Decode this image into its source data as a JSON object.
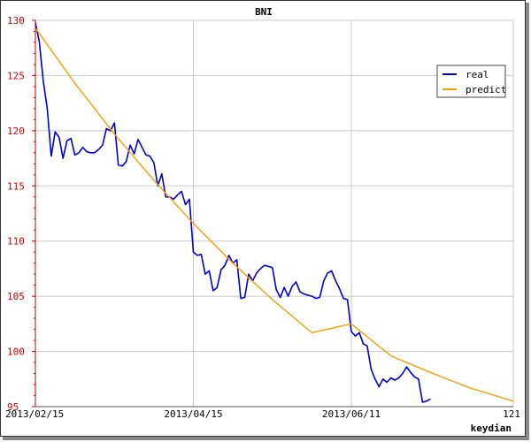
{
  "chart_data": {
    "type": "line",
    "title": "BNI",
    "watermark": "keydian",
    "xlabel": "",
    "ylabel": "",
    "x_range": [
      0,
      121
    ],
    "ylim": [
      95,
      130
    ],
    "y_ticks": [
      95,
      100,
      105,
      110,
      115,
      120,
      125,
      130
    ],
    "x_ticks": [
      {
        "x": 0,
        "label": "2013/02/15"
      },
      {
        "x": 40,
        "label": "2013/04/15"
      },
      {
        "x": 80,
        "label": "2013/06/11"
      },
      {
        "x": 121,
        "label": "121"
      }
    ],
    "grid": true,
    "legend_position": "top-right",
    "series": [
      {
        "name": "real",
        "color": "#0000cc",
        "points": [
          [
            0,
            129.8
          ],
          [
            1,
            128
          ],
          [
            2,
            124.5
          ],
          [
            3,
            122
          ],
          [
            4,
            117.7
          ],
          [
            5,
            119.9
          ],
          [
            6,
            119.4
          ],
          [
            7,
            117.5
          ],
          [
            8,
            119.1
          ],
          [
            9,
            119.3
          ],
          [
            10,
            117.8
          ],
          [
            11,
            118.0
          ],
          [
            12,
            118.5
          ],
          [
            13,
            118.1
          ],
          [
            14,
            118.0
          ],
          [
            15,
            118.0
          ],
          [
            16,
            118.3
          ],
          [
            17,
            118.7
          ],
          [
            18,
            120.2
          ],
          [
            19,
            120.0
          ],
          [
            20,
            120.7
          ],
          [
            21,
            116.9
          ],
          [
            22,
            116.8
          ],
          [
            23,
            117.2
          ],
          [
            24,
            118.7
          ],
          [
            25,
            117.9
          ],
          [
            26,
            119.2
          ],
          [
            27,
            118.5
          ],
          [
            28,
            117.8
          ],
          [
            29,
            117.7
          ],
          [
            30,
            117.1
          ],
          [
            31,
            115.0
          ],
          [
            32,
            116.1
          ],
          [
            33,
            114.0
          ],
          [
            34,
            114.0
          ],
          [
            35,
            113.8
          ],
          [
            36,
            114.2
          ],
          [
            37,
            114.5
          ],
          [
            38,
            113.3
          ],
          [
            39,
            113.8
          ],
          [
            40,
            109.0
          ],
          [
            41,
            108.7
          ],
          [
            42,
            108.8
          ],
          [
            43,
            107.0
          ],
          [
            44,
            107.3
          ],
          [
            45,
            105.5
          ],
          [
            46,
            105.8
          ],
          [
            47,
            107.4
          ],
          [
            48,
            107.8
          ],
          [
            49,
            108.7
          ],
          [
            50,
            108.0
          ],
          [
            51,
            108.3
          ],
          [
            52,
            104.8
          ],
          [
            53,
            104.9
          ],
          [
            54,
            107.0
          ],
          [
            55,
            106.4
          ],
          [
            56,
            107.1
          ],
          [
            57,
            107.5
          ],
          [
            58,
            107.8
          ],
          [
            59,
            107.7
          ],
          [
            60,
            107.6
          ],
          [
            61,
            105.6
          ],
          [
            62,
            104.9
          ],
          [
            63,
            105.8
          ],
          [
            64,
            105.0
          ],
          [
            65,
            105.9
          ],
          [
            66,
            106.3
          ],
          [
            67,
            105.4
          ],
          [
            68,
            105.2
          ],
          [
            69,
            105.1
          ],
          [
            70,
            105.0
          ],
          [
            71,
            104.8
          ],
          [
            72,
            104.9
          ],
          [
            73,
            106.4
          ],
          [
            74,
            107.1
          ],
          [
            75,
            107.3
          ],
          [
            76,
            106.4
          ],
          [
            77,
            105.7
          ],
          [
            78,
            104.8
          ],
          [
            79,
            104.7
          ],
          [
            80,
            101.8
          ],
          [
            81,
            101.4
          ],
          [
            82,
            101.7
          ],
          [
            83,
            100.7
          ],
          [
            84,
            100.5
          ],
          [
            85,
            98.4
          ],
          [
            86,
            97.5
          ],
          [
            87,
            96.8
          ],
          [
            88,
            97.5
          ],
          [
            89,
            97.2
          ],
          [
            90,
            97.6
          ],
          [
            91,
            97.4
          ],
          [
            92,
            97.6
          ],
          [
            93,
            98.0
          ],
          [
            94,
            98.6
          ],
          [
            95,
            98.1
          ],
          [
            96,
            97.7
          ],
          [
            97,
            97.5
          ],
          [
            98,
            95.4
          ],
          [
            99,
            95.5
          ],
          [
            100,
            95.7
          ]
        ]
      },
      {
        "name": "predict",
        "color": "#f5a000",
        "points": [
          [
            0,
            129.3
          ],
          [
            10,
            124.3
          ],
          [
            20,
            119.7
          ],
          [
            30,
            115.5
          ],
          [
            40,
            111.6
          ],
          [
            50,
            108.0
          ],
          [
            60,
            104.7
          ],
          [
            70,
            101.7
          ],
          [
            80,
            102.5
          ],
          [
            90,
            99.6
          ],
          [
            100,
            98.1
          ],
          [
            110,
            96.7
          ],
          [
            121,
            95.5
          ]
        ]
      }
    ]
  }
}
